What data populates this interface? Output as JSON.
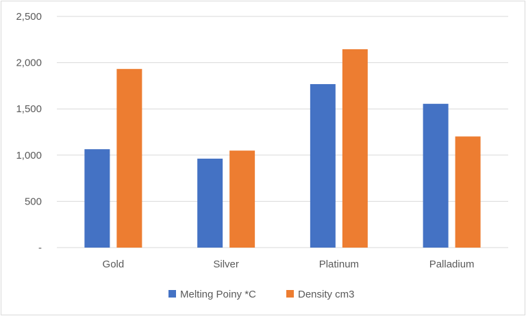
{
  "chart_data": {
    "type": "bar",
    "categories": [
      "Gold",
      "Silver",
      "Platinum",
      "Palladium"
    ],
    "series": [
      {
        "name": "Melting Poiny *C",
        "color": "#4472c4",
        "values": [
          1064,
          962,
          1768,
          1555
        ]
      },
      {
        "name": "Density cm3",
        "color": "#ed7d31",
        "values": [
          1932,
          1049,
          2145,
          1202
        ]
      }
    ],
    "ylim": [
      0,
      2500
    ],
    "yticks": [
      0,
      500,
      1000,
      1500,
      2000,
      2500
    ],
    "ytick_labels": [
      "-",
      "500",
      "1,000",
      "1,500",
      "2,000",
      "2,500"
    ],
    "grid": true,
    "legend_position": "bottom"
  }
}
